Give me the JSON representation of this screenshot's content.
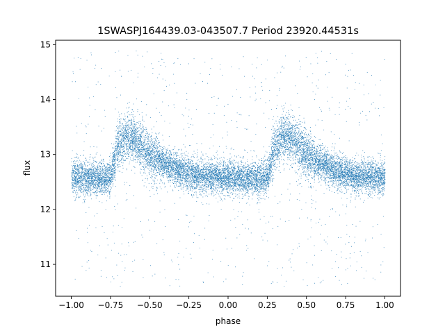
{
  "chart_data": {
    "type": "scatter",
    "title": "1SWASPJ164439.03-043507.7 Period 23920.44531s",
    "xlabel": "phase",
    "ylabel": "flux",
    "xlim": [
      -1.1,
      1.1
    ],
    "ylim": [
      10.42,
      15.08
    ],
    "xticks": [
      -1.0,
      -0.75,
      -0.5,
      -0.25,
      0.0,
      0.25,
      0.5,
      0.75,
      1.0
    ],
    "xtick_labels": [
      "−1.00",
      "−0.75",
      "−0.50",
      "−0.25",
      "0.00",
      "0.25",
      "0.50",
      "0.75",
      "1.00"
    ],
    "yticks": [
      11,
      12,
      13,
      14,
      15
    ],
    "ytick_labels": [
      "11",
      "12",
      "13",
      "14",
      "15"
    ],
    "grid": false,
    "legend": "none",
    "point_color": "#1f77b4",
    "series": [
      {
        "x_range": [
          -1.0,
          1.0
        ],
        "approx_point_count": 14000,
        "phase_curve": {
          "x": [
            -1.0,
            -0.9,
            -0.8,
            -0.75,
            -0.7,
            -0.65,
            -0.6,
            -0.55,
            -0.5,
            -0.45,
            -0.4,
            -0.35,
            -0.3,
            -0.25,
            -0.2,
            -0.1,
            0.0,
            0.1,
            0.2,
            0.25,
            0.3,
            0.35,
            0.4,
            0.45,
            0.5,
            0.55,
            0.6,
            0.65,
            0.7,
            0.75,
            0.8,
            0.9,
            1.0
          ],
          "y": [
            12.6,
            12.58,
            12.57,
            12.6,
            13.2,
            13.35,
            13.3,
            13.15,
            13.0,
            12.9,
            12.82,
            12.75,
            12.7,
            12.65,
            12.62,
            12.6,
            12.58,
            12.57,
            12.56,
            12.6,
            13.2,
            13.35,
            13.3,
            13.15,
            13.0,
            12.9,
            12.82,
            12.75,
            12.7,
            12.65,
            12.62,
            12.6,
            12.58
          ]
        },
        "scatter_sigma": 0.15,
        "outlier_fraction": 0.06,
        "outlier_y_range": [
          10.6,
          14.9
        ]
      }
    ]
  }
}
